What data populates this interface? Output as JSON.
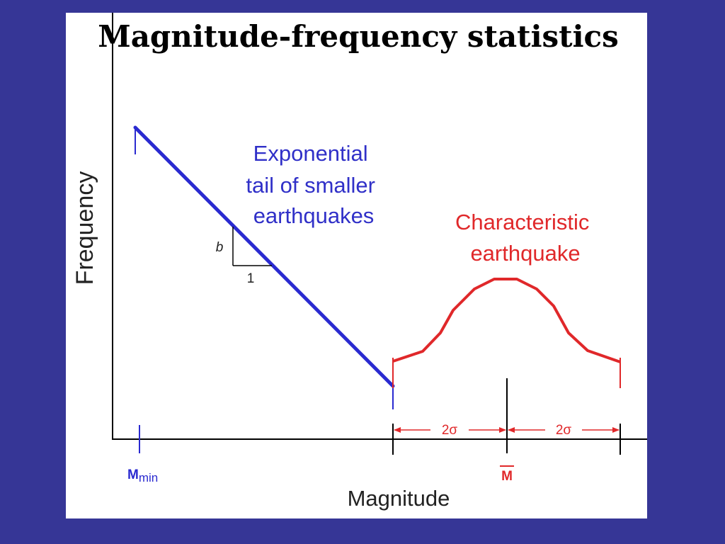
{
  "slide": {
    "title": "Magnitude-frequency statistics",
    "colors": {
      "background": "#363696",
      "panel": "#ffffff",
      "axes": "#000000",
      "exponential": "#2a2ad0",
      "characteristic": "#e0282a"
    }
  },
  "diagram": {
    "y_axis_label": "Frequency",
    "x_axis_label": "Magnitude",
    "exponential_label": [
      "Exponential",
      "tail of smaller",
      "earthquakes"
    ],
    "characteristic_label": [
      "Characteristic",
      "earthquake"
    ],
    "slope_rise_label": "b",
    "slope_run_label": "1",
    "m_min": {
      "main": "M",
      "sub": "min"
    },
    "m_bar": "M",
    "sigma_labels": [
      "2σ",
      "2σ"
    ]
  }
}
